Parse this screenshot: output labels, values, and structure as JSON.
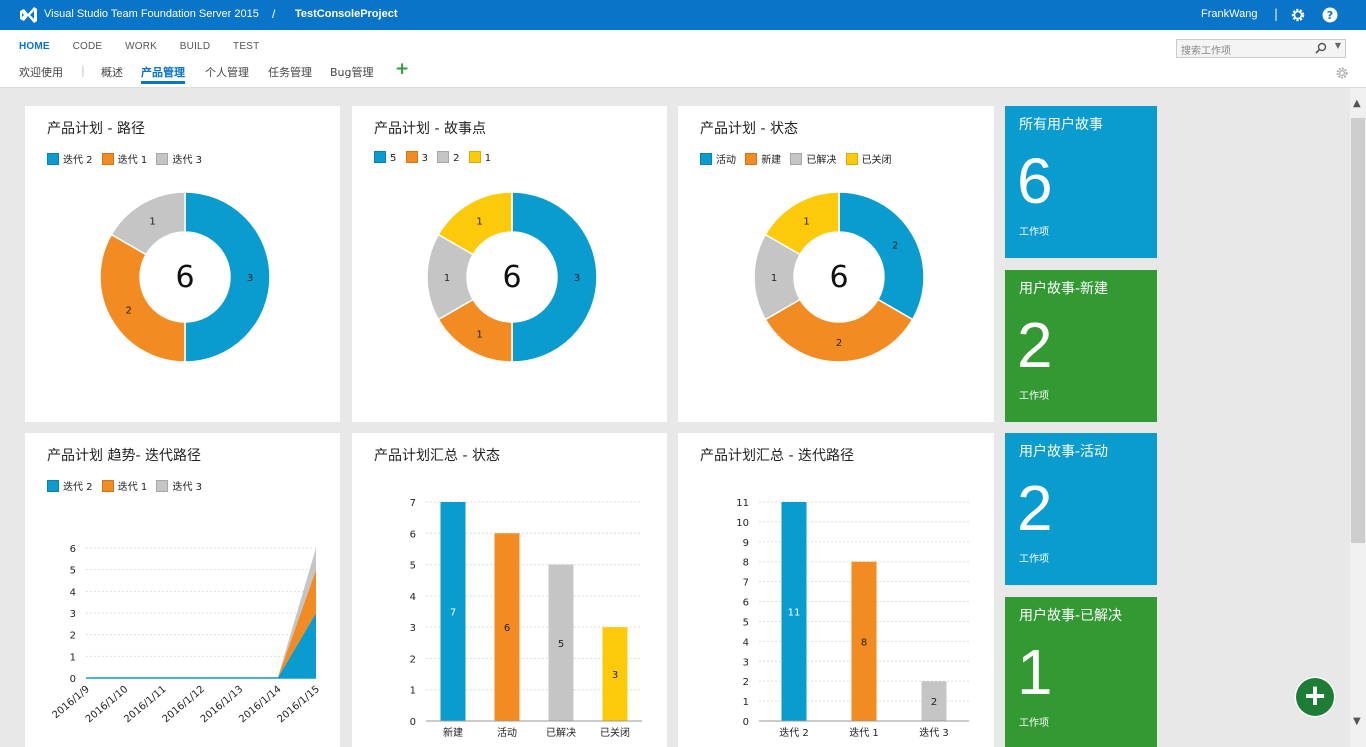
{
  "header": {
    "product": "Visual Studio Team Foundation Server 2015",
    "separator": "/",
    "project": "TestConsoleProject",
    "user": "FrankWang",
    "bar": "|",
    "brand_color": "#0a74c8"
  },
  "nav": {
    "main_tabs": [
      "HOME",
      "CODE",
      "WORK",
      "BUILD",
      "TEST"
    ],
    "sub_tabs": [
      "欢迎使用",
      "概述",
      "产品管理",
      "个人管理",
      "任务管理",
      "Bug管理"
    ],
    "active_sub": "产品管理",
    "pipe": "|",
    "plus": "+",
    "search_placeholder": "搜索工作项"
  },
  "colors": {
    "blue": "#0a9bcf",
    "orange": "#f28b21",
    "gray": "#c6c5c5",
    "yellow": "#fcca0a",
    "green": "#339933"
  },
  "cards": {
    "c1": {
      "title": "产品计划 - 路径",
      "legend": [
        "迭代 2",
        "迭代 1",
        "迭代 3"
      ]
    },
    "c2": {
      "title": "产品计划 - 故事点",
      "legend": [
        "5",
        "3",
        "2",
        "1"
      ]
    },
    "c3": {
      "title": "产品计划 - 状态",
      "legend": [
        "活动",
        "新建",
        "已解决",
        "已关闭"
      ]
    },
    "c4": {
      "title": "产品计划 趋势- 迭代路径",
      "legend": [
        "迭代 2",
        "迭代 1",
        "迭代 3"
      ]
    },
    "c5": {
      "title": "产品计划汇总 - 状态"
    },
    "c6": {
      "title": "产品计划汇总 - 迭代路径"
    }
  },
  "tiles": [
    {
      "title": "所有用户故事",
      "count": "6",
      "unit": "工作项",
      "color": "#0a9bcf"
    },
    {
      "title": "用户故事-新建",
      "count": "2",
      "unit": "工作项",
      "color": "#339933"
    },
    {
      "title": "用户故事-活动",
      "count": "2",
      "unit": "工作项",
      "color": "#0a9bcf"
    },
    {
      "title": "用户故事-已解决",
      "count": "1",
      "unit": "工作项",
      "color": "#339933"
    }
  ],
  "fab_label": "+",
  "chart_data": [
    {
      "type": "pie",
      "title": "产品计划 - 路径",
      "center": "6",
      "slices": [
        {
          "label": "迭代 2",
          "value": 3,
          "color": "#0a9bcf"
        },
        {
          "label": "迭代 1",
          "value": 2,
          "color": "#f28b21"
        },
        {
          "label": "迭代 3",
          "value": 1,
          "color": "#c6c5c5"
        }
      ]
    },
    {
      "type": "pie",
      "title": "产品计划 - 故事点",
      "center": "6",
      "slices": [
        {
          "label": "5",
          "value": 3,
          "color": "#0a9bcf"
        },
        {
          "label": "3",
          "value": 1,
          "color": "#f28b21"
        },
        {
          "label": "2",
          "value": 1,
          "color": "#c6c5c5"
        },
        {
          "label": "1",
          "value": 1,
          "color": "#fcca0a"
        }
      ]
    },
    {
      "type": "pie",
      "title": "产品计划 - 状态",
      "center": "6",
      "slices": [
        {
          "label": "活动",
          "value": 2,
          "color": "#0a9bcf"
        },
        {
          "label": "新建",
          "value": 2,
          "color": "#f28b21"
        },
        {
          "label": "已解决",
          "value": 1,
          "color": "#c6c5c5"
        },
        {
          "label": "已关闭",
          "value": 1,
          "color": "#fcca0a"
        }
      ]
    },
    {
      "type": "area",
      "title": "产品计划 趋势- 迭代路径",
      "categories": [
        "2016/1/9",
        "2016/1/10",
        "2016/1/11",
        "2016/1/12",
        "2016/1/13",
        "2016/1/14",
        "2016/1/15"
      ],
      "series": [
        {
          "name": "迭代 2",
          "values": [
            0,
            0,
            0,
            0,
            0,
            0,
            3
          ],
          "color": "#0a9bcf"
        },
        {
          "name": "迭代 1",
          "values": [
            0,
            0,
            0,
            0,
            0,
            0,
            2
          ],
          "color": "#f28b21"
        },
        {
          "name": "迭代 3",
          "values": [
            0,
            0,
            0,
            0,
            0,
            0,
            1
          ],
          "color": "#c6c5c5"
        }
      ],
      "yticks": [
        0,
        1,
        2,
        3,
        4,
        5,
        6
      ],
      "ylim": [
        0,
        6
      ]
    },
    {
      "type": "bar",
      "title": "产品计划汇总 - 状态",
      "categories": [
        "新建",
        "活动",
        "已解决",
        "已关闭"
      ],
      "values": [
        7,
        6,
        5,
        3
      ],
      "colors": [
        "#0a9bcf",
        "#f28b21",
        "#c6c5c5",
        "#fcca0a"
      ],
      "yticks": [
        0,
        1,
        2,
        3,
        4,
        5,
        6,
        7
      ],
      "ylim": [
        0,
        7
      ]
    },
    {
      "type": "bar",
      "title": "产品计划汇总 - 迭代路径",
      "categories": [
        "迭代 2",
        "迭代 1",
        "迭代 3"
      ],
      "values": [
        11,
        8,
        2
      ],
      "colors": [
        "#0a9bcf",
        "#f28b21",
        "#c6c5c5"
      ],
      "yticks": [
        0,
        1,
        2,
        3,
        4,
        5,
        6,
        7,
        8,
        9,
        10,
        11
      ],
      "ylim": [
        0,
        11
      ]
    }
  ]
}
